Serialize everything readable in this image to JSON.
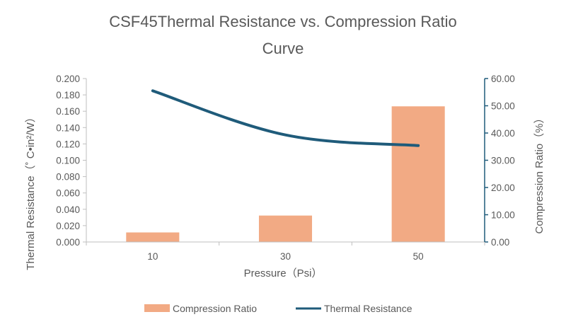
{
  "chart_data": {
    "type": "bar",
    "title_line1": "CSF45Thermal Resistance vs. Compression Ratio",
    "title_line2": "Curve",
    "xlabel": "Pressure（Psi）",
    "ylabel_left": "Thermal Resistance（˚ C•in²/W）",
    "ylabel_right": "Compression Ratio（%）",
    "categories": [
      "10",
      "30",
      "50"
    ],
    "left_axis": {
      "range": [
        0,
        0.2
      ],
      "ticks": [
        "0.000",
        "0.020",
        "0.040",
        "0.060",
        "0.080",
        "0.100",
        "0.120",
        "0.140",
        "0.160",
        "0.180",
        "0.200"
      ]
    },
    "right_axis": {
      "range": [
        0,
        60
      ],
      "ticks": [
        "0.00",
        "10.00",
        "20.00",
        "30.00",
        "40.00",
        "50.00",
        "60.00"
      ]
    },
    "series": [
      {
        "name": "Compression Ratio",
        "type": "bar",
        "axis": "right",
        "color": "#f2aa84",
        "values": [
          3.5,
          9.7,
          49.8
        ]
      },
      {
        "name": "Thermal Resistance",
        "type": "line",
        "axis": "left",
        "color": "#1f5b7a",
        "values": [
          0.185,
          0.131,
          0.118
        ]
      }
    ],
    "grid": false,
    "legend_position": "bottom"
  }
}
